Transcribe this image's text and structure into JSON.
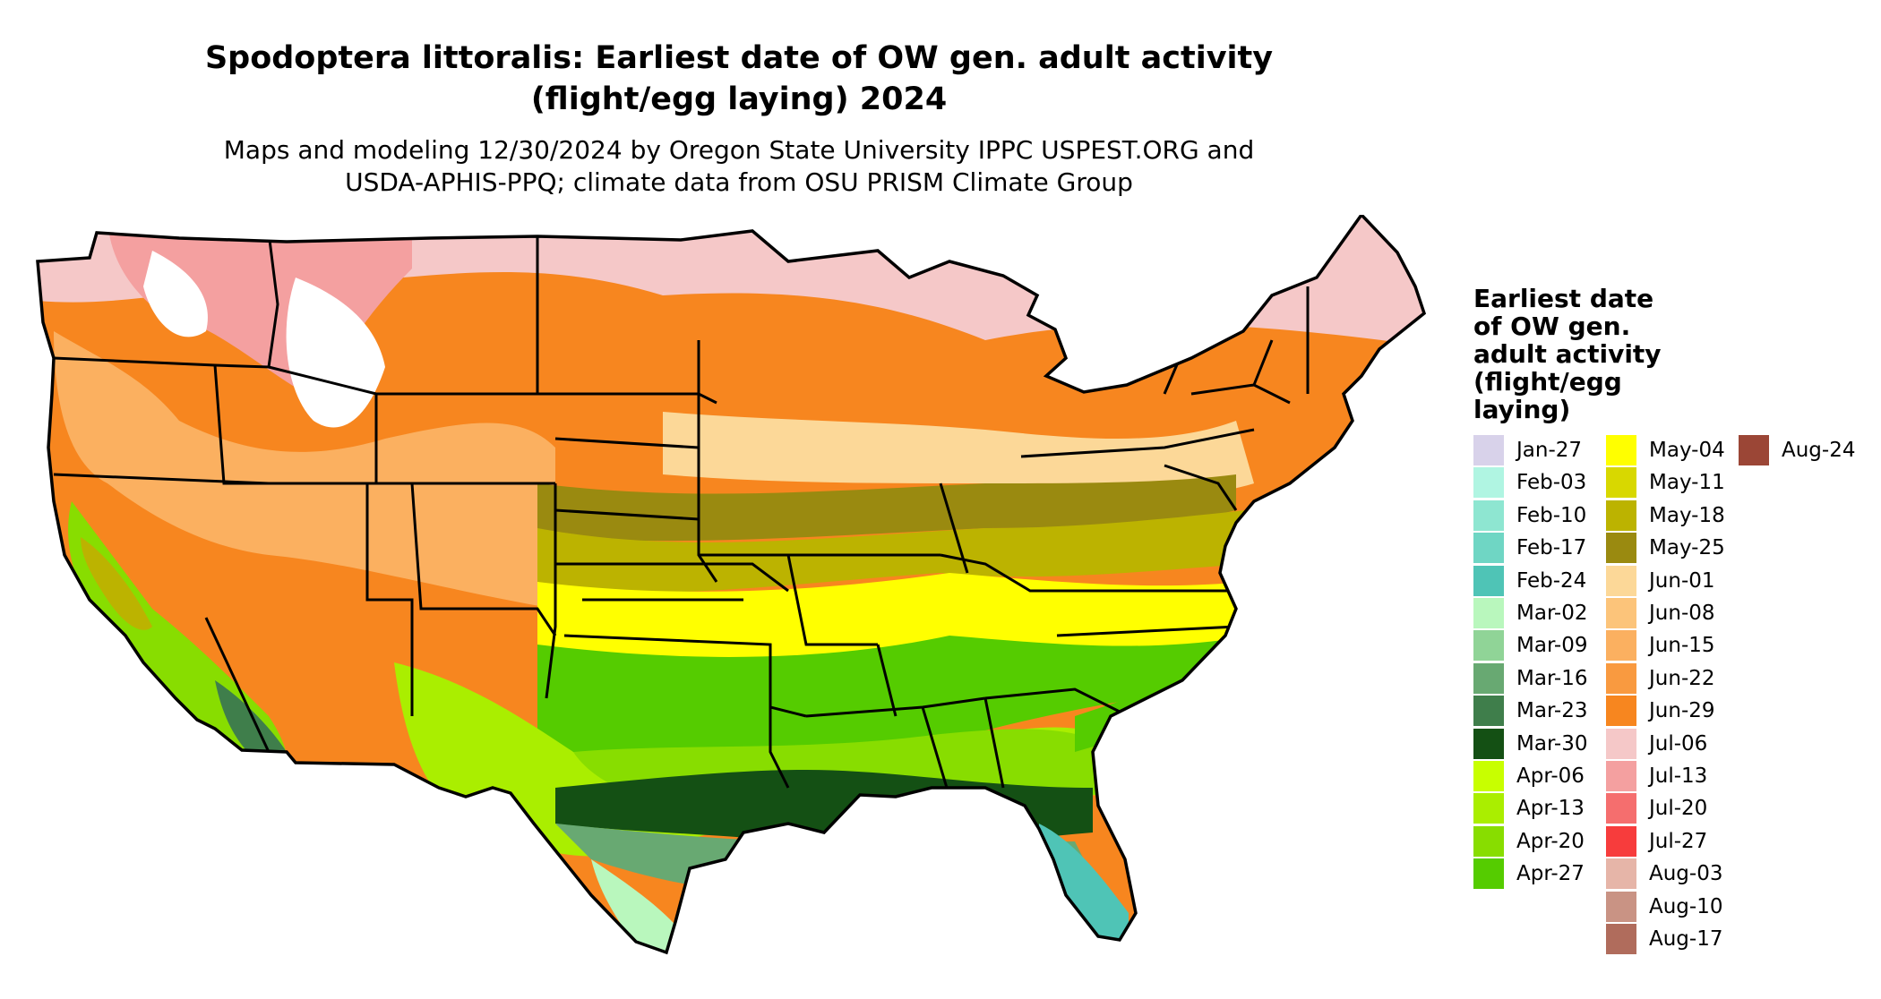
{
  "title_line1": "Spodoptera littoralis: Earliest date of OW gen. adult activity",
  "title_line2": "(flight/egg laying) 2024",
  "subtitle_line1": "Maps and modeling 12/30/2024 by Oregon State University IPPC USPEST.ORG and",
  "subtitle_line2": "USDA-APHIS-PPQ; climate data from OSU PRISM Climate Group",
  "legend": {
    "title_lines": [
      "Earliest date",
      "of OW gen.",
      "adult activity",
      "(flight/egg",
      "laying)"
    ],
    "items": [
      {
        "label": "Jan-27",
        "color": "#d8d2ea"
      },
      {
        "label": "Feb-03",
        "color": "#b0f5e2"
      },
      {
        "label": "Feb-10",
        "color": "#8ee6d1"
      },
      {
        "label": "Feb-17",
        "color": "#6fd6c4"
      },
      {
        "label": "Feb-24",
        "color": "#4fc4b6"
      },
      {
        "label": "Mar-02",
        "color": "#b9f7bd"
      },
      {
        "label": "Mar-09",
        "color": "#90d497"
      },
      {
        "label": "Mar-16",
        "color": "#68a972"
      },
      {
        "label": "Mar-23",
        "color": "#3f7e4b"
      },
      {
        "label": "Mar-30",
        "color": "#145014"
      },
      {
        "label": "Apr-06",
        "color": "#c8ff00"
      },
      {
        "label": "Apr-13",
        "color": "#aaee00"
      },
      {
        "label": "Apr-20",
        "color": "#88dd00"
      },
      {
        "label": "Apr-27",
        "color": "#55cc00"
      },
      {
        "label": "May-04",
        "color": "#ffff00"
      },
      {
        "label": "May-11",
        "color": "#d8d800"
      },
      {
        "label": "May-18",
        "color": "#bcb300"
      },
      {
        "label": "May-25",
        "color": "#9a8a10"
      },
      {
        "label": "Jun-01",
        "color": "#fcd898"
      },
      {
        "label": "Jun-08",
        "color": "#fcc47a"
      },
      {
        "label": "Jun-15",
        "color": "#fbb060"
      },
      {
        "label": "Jun-22",
        "color": "#f99a40"
      },
      {
        "label": "Jun-29",
        "color": "#f7861f"
      },
      {
        "label": "Jul-06",
        "color": "#f5c8c8"
      },
      {
        "label": "Jul-13",
        "color": "#f4a0a0"
      },
      {
        "label": "Jul-20",
        "color": "#f56e6e"
      },
      {
        "label": "Jul-27",
        "color": "#f73c3c"
      },
      {
        "label": "Aug-03",
        "color": "#e6b5a8"
      },
      {
        "label": "Aug-10",
        "color": "#c99384"
      },
      {
        "label": "Aug-17",
        "color": "#b06c5c"
      },
      {
        "label": "Aug-24",
        "color": "#9b4636"
      }
    ]
  }
}
